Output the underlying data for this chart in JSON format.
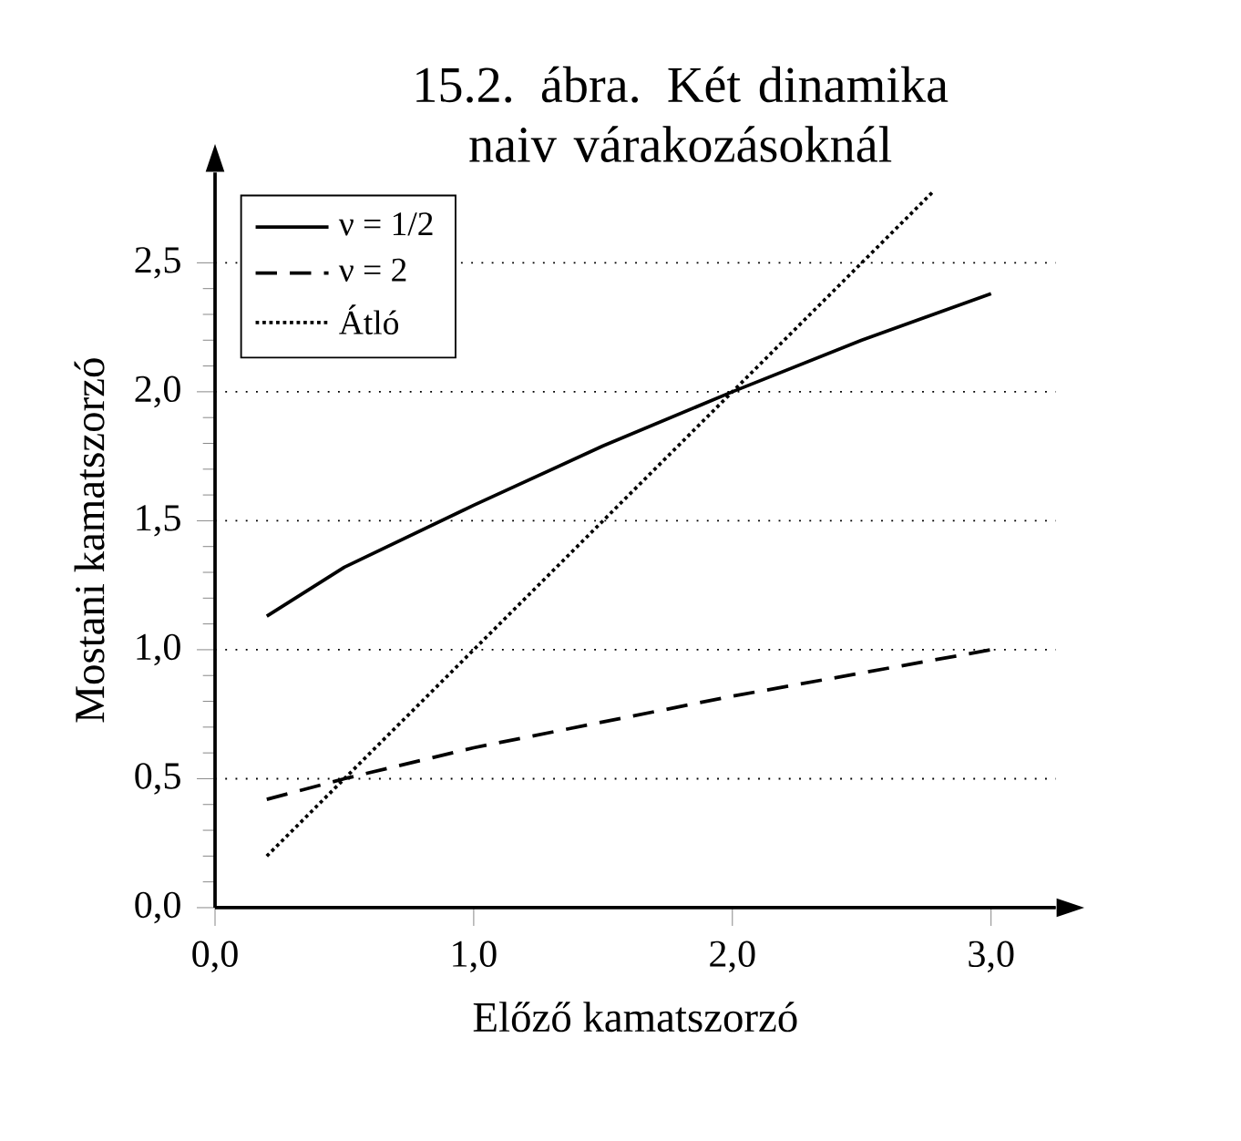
{
  "chart_data": {
    "type": "line",
    "title": "15.2. ábra. Két dinamika naiv várakozásoknál",
    "xlabel": "Előző kamatszorzó",
    "ylabel": "Mostani kamatszorzó",
    "xlim": [
      0,
      3.25
    ],
    "ylim": [
      0,
      2.85
    ],
    "xticks": [
      {
        "value": 0,
        "label": "0,0"
      },
      {
        "value": 1,
        "label": "1,0"
      },
      {
        "value": 2,
        "label": "2,0"
      },
      {
        "value": 3,
        "label": "3,0"
      }
    ],
    "yticks": [
      {
        "value": 0,
        "label": "0,0"
      },
      {
        "value": 0.5,
        "label": "0,5"
      },
      {
        "value": 1,
        "label": "1,0"
      },
      {
        "value": 1.5,
        "label": "1,5"
      },
      {
        "value": 2,
        "label": "2,0"
      },
      {
        "value": 2.5,
        "label": "2,5"
      }
    ],
    "grid": "y",
    "legend": "top left",
    "marker": "none",
    "series": [
      {
        "name": "ν = 1/2",
        "color": "#000000",
        "line_style": "solid",
        "x": [
          0.2,
          0.5,
          1,
          1.5,
          2,
          2.5,
          3
        ],
        "values": [
          1.13,
          1.32,
          1.56,
          1.79,
          2.0,
          2.2,
          2.38
        ]
      },
      {
        "name": "ν = 2",
        "color": "#000000",
        "line_style": "dashed",
        "x": [
          0.2,
          0.5,
          1,
          1.5,
          2,
          2.5,
          3
        ],
        "values": [
          0.42,
          0.5,
          0.62,
          0.72,
          0.82,
          0.91,
          1.0
        ]
      },
      {
        "name": "Átló",
        "color": "#000000",
        "line_style": "dotted",
        "x": [
          0.2,
          2.78
        ],
        "values": [
          0.2,
          2.78
        ]
      }
    ]
  }
}
